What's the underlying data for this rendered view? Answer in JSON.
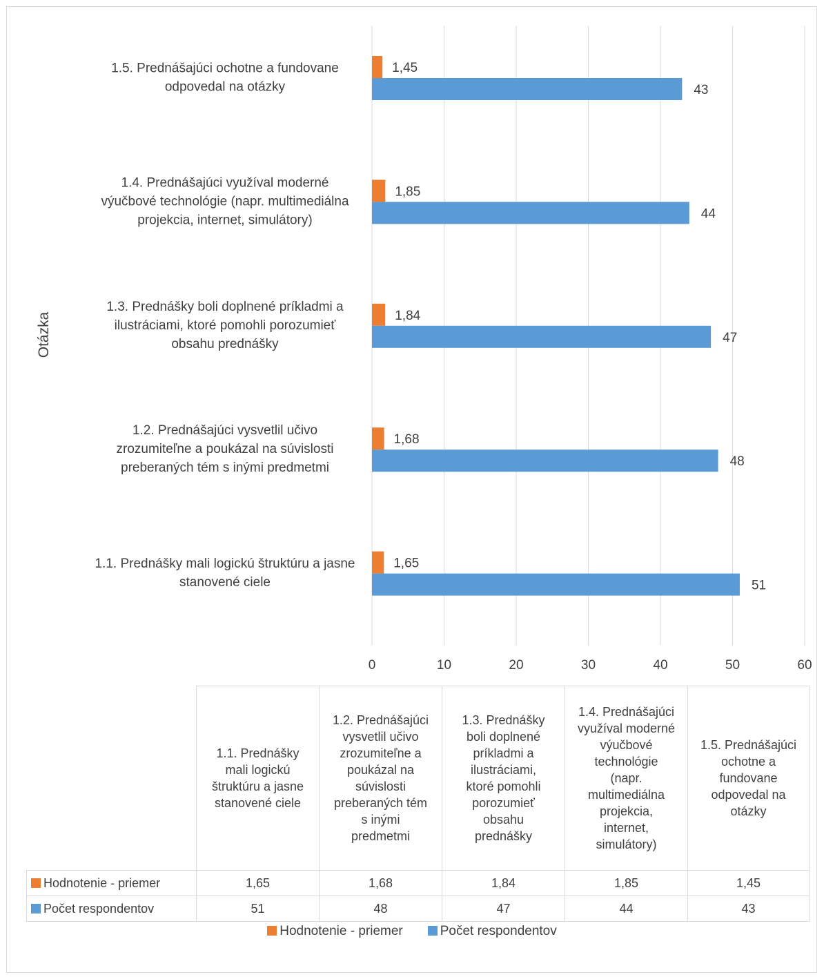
{
  "chart_data": {
    "type": "bar",
    "orientation": "horizontal",
    "y_axis_title": "Otázka",
    "categories": [
      "1.1. Prednášky mali logickú štruktúru a jasne stanovené ciele",
      "1.2. Prednášajúci  vysvetlil učivo zrozumiteľne a poukázal na súvislosti preberaných tém s inými predmetmi",
      "1.3. Prednášky boli doplnené príkladmi a ilustráciami, ktoré pomohli porozumieť obsahu prednášky",
      "1.4. Prednášajúci využíval moderné výučbové technológie (napr. multimediálna projekcia, internet, simulátory)",
      "1.5. Prednášajúci ochotne a fundovane odpovedal na otázky"
    ],
    "category_label_lines": [
      [
        "1.1. Prednášky mali logickú štruktúru a jasne",
        "stanovené ciele"
      ],
      [
        "1.2. Prednášajúci  vysvetlil učivo",
        "zrozumiteľne a poukázal na súvislosti",
        "preberaných tém s inými predmetmi"
      ],
      [
        "1.3. Prednášky boli doplnené príkladmi a",
        "ilustráciami, ktoré pomohli porozumieť",
        "obsahu prednášky"
      ],
      [
        "1.4. Prednášajúci využíval moderné",
        "výučbové technológie (napr. multimediálna",
        "projekcia, internet, simulátory)"
      ],
      [
        "1.5. Prednášajúci ochotne a fundovane",
        "odpovedal na otázky"
      ]
    ],
    "table_header_lines": [
      [
        "1.1. Prednášky",
        "mali logickú",
        "štruktúru a jasne",
        "stanovené ciele"
      ],
      [
        "1.2. Prednášajúci",
        "vysvetlil učivo",
        "zrozumiteľne a",
        "poukázal na",
        "súvislosti",
        "preberaných tém",
        "s inými",
        "predmetmi"
      ],
      [
        "1.3. Prednášky",
        "boli doplnené",
        "príkladmi a",
        "ilustráciami,",
        "ktoré pomohli",
        "porozumieť",
        "obsahu",
        "prednášky"
      ],
      [
        "1.4. Prednášajúci",
        "využíval moderné",
        "výučbové",
        "technológie",
        "(napr.",
        "multimediálna",
        "projekcia,",
        "internet,",
        "simulátory)"
      ],
      [
        "1.5. Prednášajúci",
        "ochotne a",
        "fundovane",
        "odpovedal na",
        "otázky"
      ]
    ],
    "series": [
      {
        "name": "Hodnotenie - priemer",
        "color": "#ed7d31",
        "values": [
          1.65,
          1.68,
          1.84,
          1.85,
          1.45
        ],
        "labels": [
          "1,65",
          "1,68",
          "1,84",
          "1,85",
          "1,45"
        ]
      },
      {
        "name": "Počet respondentov",
        "color": "#5b9bd5",
        "values": [
          51,
          48,
          47,
          44,
          43
        ],
        "labels": [
          "51",
          "48",
          "47",
          "44",
          "43"
        ]
      }
    ],
    "x_axis": {
      "min": 0,
      "max": 60,
      "step": 10,
      "tick_labels": [
        "0",
        "10",
        "20",
        "30",
        "40",
        "50",
        "60"
      ]
    },
    "grid": "vertical",
    "legend_position": "bottom",
    "data_table": true
  }
}
